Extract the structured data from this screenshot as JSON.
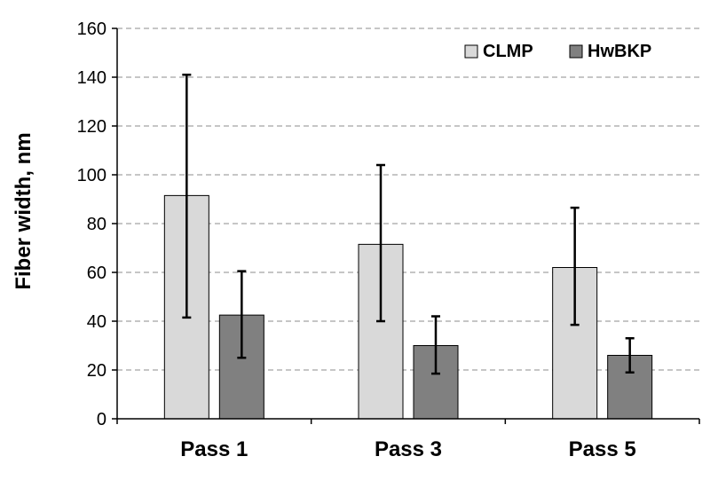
{
  "chart_data": {
    "type": "bar",
    "categories": [
      "Pass 1",
      "Pass 3",
      "Pass 5"
    ],
    "series": [
      {
        "name": "CLMP",
        "color": "#d9d9d9",
        "values": [
          91.5,
          71.5,
          62
        ],
        "error_low": [
          41.5,
          40,
          38.5
        ],
        "error_high": [
          141,
          104,
          86.5
        ]
      },
      {
        "name": "HwBKP",
        "color": "#808080",
        "values": [
          42.5,
          30,
          26
        ],
        "error_low": [
          25,
          18.5,
          19
        ],
        "error_high": [
          60.5,
          42,
          33
        ]
      }
    ],
    "xlabel": "",
    "ylabel": "Fiber width, nm",
    "ylim": [
      0,
      160
    ],
    "yticks": [
      0,
      20,
      40,
      60,
      80,
      100,
      120,
      140,
      160
    ],
    "grid": true,
    "legend_position": "top-right"
  }
}
